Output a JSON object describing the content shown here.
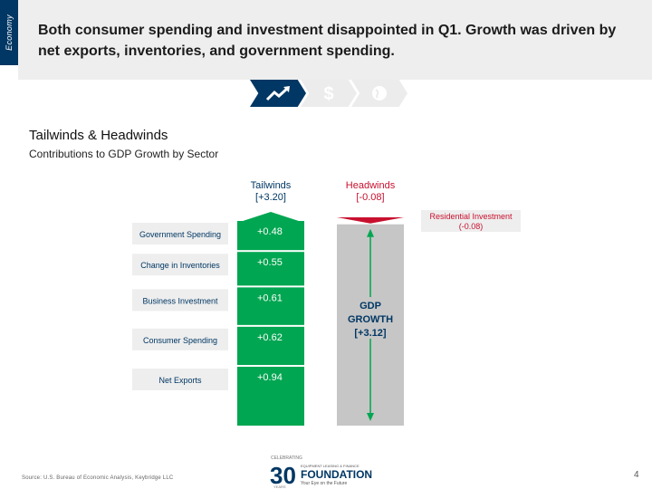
{
  "side_tab": "Economy",
  "headline": "Both consumer spending and investment disappointed in Q1. Growth was driven by net exports, inventories, and government spending.",
  "nav_icons": [
    "chart-up-icon",
    "dollar-icon",
    "globe-icon"
  ],
  "section_title": "Tailwinds & Headwinds",
  "section_subtitle": "Contributions to GDP Growth by Sector",
  "colors": {
    "green": "#00a651",
    "red": "#c8102e",
    "gray": "#c6c6c6",
    "navy": "#003764",
    "label_bg": "#eeeeee"
  },
  "chart_data": {
    "type": "bar",
    "title": "Contributions to GDP Growth by Sector",
    "tailwinds": {
      "label": "Tailwinds",
      "total_label": "[+3.20]",
      "items": [
        {
          "name": "Government Spending",
          "value": 0.48,
          "label": "+0.48"
        },
        {
          "name": "Change in Inventories",
          "value": 0.55,
          "label": "+0.55"
        },
        {
          "name": "Business Investment",
          "value": 0.61,
          "label": "+0.61"
        },
        {
          "name": "Consumer Spending",
          "value": 0.62,
          "label": "+0.62"
        },
        {
          "name": "Net Exports",
          "value": 0.94,
          "label": "+0.94"
        }
      ]
    },
    "headwinds": {
      "label": "Headwinds",
      "total_label": "[-0.08]",
      "items": [
        {
          "name": "Residential Investment",
          "value": -0.08,
          "label": "(-0.08)"
        }
      ]
    },
    "gdp": {
      "label_line1": "GDP",
      "label_line2": "GROWTH",
      "total_label": "[+3.12]",
      "value": 3.12
    }
  },
  "source": "Source: U.S. Bureau of Economic Analysis, Keybridge LLC",
  "logo": {
    "celebrating": "CELEBRATING",
    "years": "30",
    "years_word": "YEARS",
    "org_line": "EQUIPMENT LEASING & FINANCE",
    "foundation": "FOUNDATION",
    "tagline": "Your Eye on the Future"
  },
  "page_number": "4"
}
